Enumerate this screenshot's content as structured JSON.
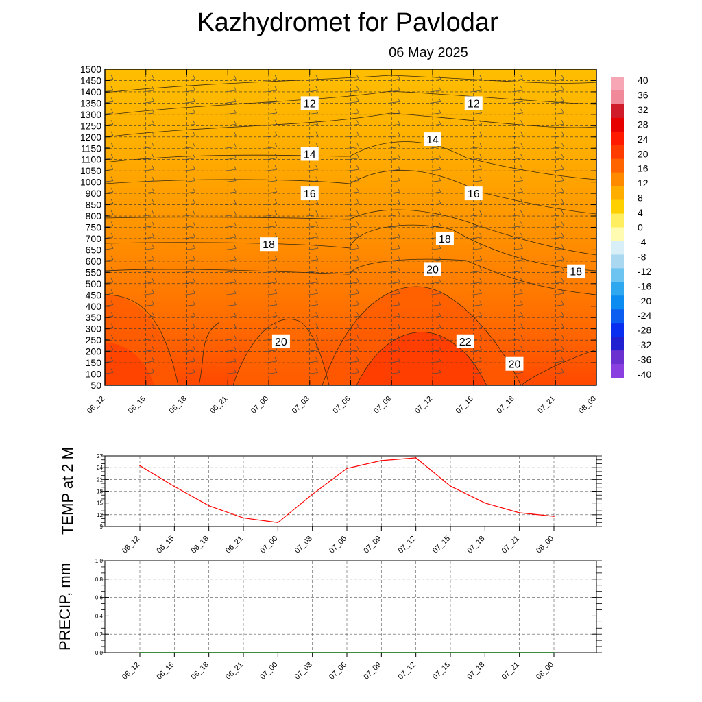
{
  "title": "Kazhydromet  for Pavlodar",
  "date": "06 May 2025",
  "colors": {
    "temp_line": "#ff0000",
    "precip_line": "#006400",
    "grid": "#555555"
  },
  "chart_data": [
    {
      "type": "heatmap",
      "id": "cross-section",
      "title": "Kazhydromet  for Pavlodar",
      "subtitle": "06 May 2025",
      "x": [
        "06_12",
        "06_15",
        "06_18",
        "06_21",
        "07_00",
        "07_03",
        "07_06",
        "07_09",
        "07_12",
        "07_15",
        "07_18",
        "07_21",
        "08_00"
      ],
      "y": [
        50,
        100,
        150,
        200,
        250,
        300,
        350,
        400,
        450,
        500,
        550,
        600,
        650,
        700,
        750,
        800,
        850,
        900,
        1000,
        1050,
        1100,
        1150,
        1200,
        1250,
        1300,
        1350,
        1400,
        1450,
        1500
      ],
      "y_tick_labels": [
        "50",
        "100",
        "150",
        "200",
        "250",
        "300",
        "350",
        "400",
        "450",
        "500",
        "550",
        "600",
        "650",
        "700",
        "750",
        "800",
        "850",
        "900",
        "1000",
        "1050",
        "1100",
        "1150",
        "1200",
        "1250",
        "1300",
        "1350",
        "1400",
        "1450",
        "1500"
      ],
      "surface_temp_profile": [
        26,
        25,
        22,
        22,
        22,
        22,
        25,
        27,
        27,
        25,
        21,
        20,
        20
      ],
      "contour_labels": [
        {
          "text": "12",
          "x_index": 5,
          "y_value": 1350
        },
        {
          "text": "12",
          "x_index": 9,
          "y_value": 1350
        },
        {
          "text": "14",
          "x_index": 5,
          "y_value": 1125
        },
        {
          "text": "14",
          "x_index": 8,
          "y_value": 1190
        },
        {
          "text": "16",
          "x_index": 5,
          "y_value": 900
        },
        {
          "text": "16",
          "x_index": 9,
          "y_value": 900
        },
        {
          "text": "18",
          "x_index": 4,
          "y_value": 675
        },
        {
          "text": "18",
          "x_index": 8.3,
          "y_value": 700
        },
        {
          "text": "18",
          "x_index": 11.5,
          "y_value": 555
        },
        {
          "text": "20",
          "x_index": 8,
          "y_value": 565
        },
        {
          "text": "20",
          "x_index": 4.3,
          "y_value": 245
        },
        {
          "text": "22",
          "x_index": 8.8,
          "y_value": 245
        },
        {
          "text": "20",
          "x_index": 10,
          "y_value": 145
        }
      ],
      "colorbar": {
        "labels": [
          "40",
          "36",
          "32",
          "28",
          "24",
          "20",
          "16",
          "12",
          "8",
          "4",
          "0",
          "-4",
          "-8",
          "-12",
          "-16",
          "-20",
          "-24",
          "-28",
          "-32",
          "-36",
          "-40"
        ],
        "colors": [
          "#f6a6b4",
          "#f08a9a",
          "#d01b2b",
          "#e60000",
          "#ff1a00",
          "#ff3c00",
          "#ff6400",
          "#ff8a00",
          "#ffae00",
          "#ffd000",
          "#ffee60",
          "#fffbb0",
          "#d8eff8",
          "#aad8f0",
          "#6ec4f0",
          "#30a8f0",
          "#0c8cf0",
          "#0c5ef0",
          "#0a2ef0",
          "#2020d0",
          "#6a30d0",
          "#8a40e0"
        ]
      },
      "grid": true
    },
    {
      "type": "line",
      "id": "temp-2m",
      "ylabel": "TEMP at 2 M",
      "x": [
        "06_12",
        "06_15",
        "06_18",
        "06_21",
        "07_00",
        "07_03",
        "07_06",
        "07_09",
        "07_12",
        "07_15",
        "07_18",
        "07_21",
        "08_00"
      ],
      "series": [
        {
          "values": [
            24.5,
            19.2,
            14.3,
            11.2,
            10.0,
            17.2,
            23.8,
            25.8,
            26.5,
            19.3,
            15.0,
            12.5,
            11.6
          ]
        }
      ],
      "ylim": [
        9,
        27
      ],
      "yticks": [
        "27",
        "24",
        "21",
        "18",
        "15",
        "12",
        "9"
      ],
      "grid": true
    },
    {
      "type": "line",
      "id": "precip",
      "ylabel": "PRECIP, mm",
      "x": [
        "06_12",
        "06_15",
        "06_18",
        "06_21",
        "07_00",
        "07_03",
        "07_06",
        "07_09",
        "07_12",
        "07_15",
        "07_18",
        "07_21",
        "08_00"
      ],
      "series": [
        {
          "values": [
            0,
            0,
            0,
            0,
            0,
            0,
            0,
            0,
            0,
            0,
            0,
            0,
            0
          ]
        }
      ],
      "ylim": [
        0,
        1
      ],
      "yticks": [
        "1.0",
        "0.8",
        "0.6",
        "0.4",
        "0.2",
        "0.0"
      ],
      "grid": true
    }
  ]
}
